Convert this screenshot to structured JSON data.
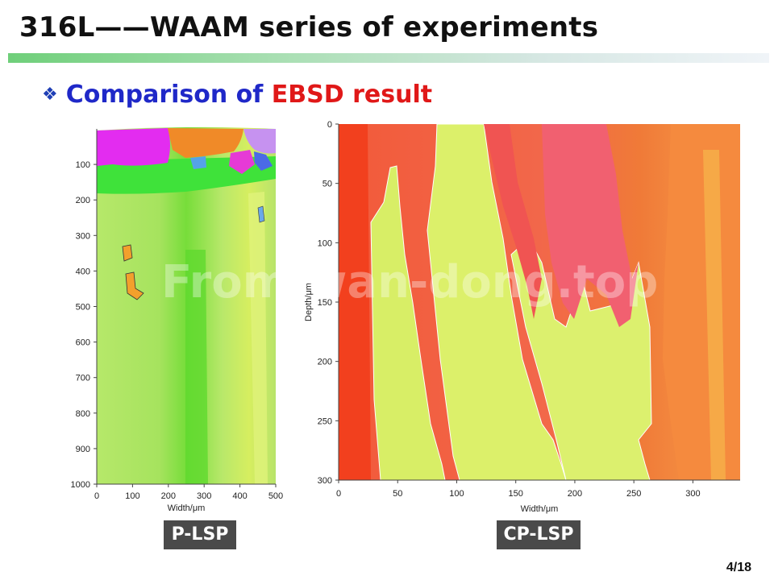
{
  "slide": {
    "title": "316L——WAAM series of experiments",
    "subtitle_prefix": "Comparison of ",
    "subtitle_highlight": "EBSD result",
    "page_number": "4/18",
    "watermark": "From wan-dong.top"
  },
  "left_map": {
    "label": "P-LSP",
    "xlabel": "Width/μm",
    "x_ticks": [
      "0",
      "100",
      "200",
      "300",
      "400",
      "500"
    ],
    "y_ticks": [
      "100",
      "200",
      "300",
      "400",
      "500",
      "600",
      "700",
      "800",
      "900",
      "1000"
    ]
  },
  "right_map": {
    "label": "CP-LSP",
    "xlabel": "Width/μm",
    "ylabel": "Depth/μm",
    "x_ticks": [
      "0",
      "50",
      "100",
      "150",
      "200",
      "250",
      "300"
    ],
    "y_ticks": [
      "0",
      "50",
      "100",
      "150",
      "200",
      "250",
      "300"
    ]
  },
  "colors": {
    "title_bar": "#6fcf7a",
    "subtitle_blue": "#1f28c8",
    "subtitle_red": "#e01818",
    "label_bg": "#4a4a4a"
  }
}
